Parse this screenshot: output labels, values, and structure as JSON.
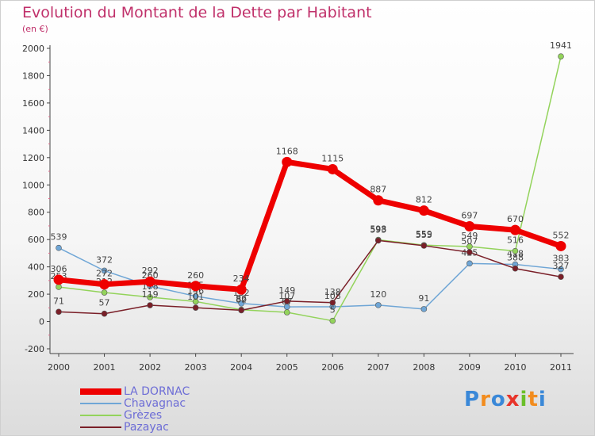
{
  "title": "Evolution du Montant de la Dette par Habitant",
  "subtitle": "(en €)",
  "logo": [
    "P",
    "r",
    "o",
    "x",
    "i",
    "t",
    "i"
  ],
  "logo_colors": [
    "#3a88d8",
    "#f28c1e",
    "#3a88d8",
    "#e8342a",
    "#6bbf2a",
    "#f28c1e",
    "#3a88d8"
  ],
  "chart_data": {
    "type": "line",
    "title": "Evolution du Montant de la Dette par Habitant",
    "subtitle": "(en €)",
    "x": [
      "2000",
      "2001",
      "2002",
      "2003",
      "2004",
      "2005",
      "2006",
      "2007",
      "2008",
      "2009",
      "2010",
      "2011"
    ],
    "ylim": [
      -200,
      2000
    ],
    "yticks": [
      "-200",
      "0",
      "200",
      "400",
      "600",
      "800",
      "1000",
      "1200",
      "1400",
      "1600",
      "1800",
      "2000"
    ],
    "grid": false,
    "legend_position": "bottom-left",
    "series": [
      {
        "name": "LA DORNAC",
        "color": "#ee0000",
        "values": [
          306,
          272,
          292,
          260,
          234,
          1168,
          1115,
          887,
          812,
          697,
          670,
          552
        ],
        "labels": [
          "306",
          "272",
          "292",
          "260",
          "234",
          "1168",
          "1115",
          "887",
          "812",
          "697",
          "670",
          "552"
        ]
      },
      {
        "name": "Chavagnac",
        "color": "#6fa6d6",
        "values": [
          539,
          372,
          260,
          185,
          132,
          107,
          108,
          120,
          91,
          425,
          418,
          383
        ],
        "labels": [
          "539",
          "372",
          "260",
          "185",
          "132",
          "107",
          "108",
          "120",
          "91",
          "425",
          "418",
          "383"
        ]
      },
      {
        "name": "Grèzes",
        "color": "#93d35b",
        "values": [
          253,
          212,
          178,
          146,
          86,
          67,
          5,
          598,
          559,
          549,
          516,
          1941
        ],
        "labels": [
          "253",
          "212",
          "178",
          "146",
          "86",
          "67",
          "5",
          "598",
          "559",
          "549",
          "516",
          "1941"
        ]
      },
      {
        "name": "Pazayac",
        "color": "#7a1f28",
        "values": [
          71,
          57,
          119,
          101,
          82,
          149,
          138,
          593,
          555,
          507,
          388,
          327
        ],
        "labels": [
          "71",
          "57",
          "119",
          "101",
          "82",
          "149",
          "138",
          "593",
          "555",
          "507",
          "388",
          "327"
        ]
      }
    ]
  }
}
